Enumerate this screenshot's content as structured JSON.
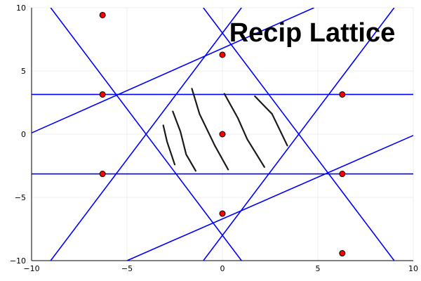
{
  "chart_data": {
    "type": "scatter",
    "title": "Recip Lattice",
    "xlabel": "",
    "ylabel": "",
    "xlim": [
      -10,
      10
    ],
    "ylim": [
      -10,
      10
    ],
    "x_ticks": [
      -10,
      -5,
      0,
      5,
      10
    ],
    "y_ticks": [
      -10,
      -5,
      0,
      5,
      10
    ],
    "x_tick_labels": [
      "−10",
      "−5",
      "0",
      "5",
      "10"
    ],
    "y_tick_labels": [
      "−10",
      "−5",
      "0",
      "5",
      "10"
    ],
    "grid": true,
    "legend": "none",
    "points": [
      {
        "x": 0,
        "y": 0
      },
      {
        "x": 0,
        "y": 6.28
      },
      {
        "x": 0,
        "y": -6.28
      },
      {
        "x": 6.28,
        "y": 3.14
      },
      {
        "x": 6.28,
        "y": -3.14
      },
      {
        "x": -6.28,
        "y": 3.14
      },
      {
        "x": -6.28,
        "y": -3.14
      },
      {
        "x": 6.28,
        "y": -9.42
      },
      {
        "x": -6.28,
        "y": 9.42
      }
    ],
    "lines": [
      {
        "x": [
          -10,
          10
        ],
        "y": [
          3.14,
          3.14
        ]
      },
      {
        "x": [
          -10,
          10
        ],
        "y": [
          -3.14,
          -3.14
        ]
      },
      {
        "x": [
          -10,
          4.8
        ],
        "y": [
          0.1,
          10
        ]
      },
      {
        "x": [
          -5,
          10
        ],
        "y": [
          -10,
          -0.1
        ]
      },
      {
        "x": [
          -9,
          1.0
        ],
        "y": [
          10,
          -10
        ]
      },
      {
        "x": [
          -1.0,
          9.0
        ],
        "y": [
          10,
          -10
        ]
      },
      {
        "x": [
          -9.0,
          1.0
        ],
        "y": [
          -10,
          10
        ]
      },
      {
        "x": [
          -1.0,
          9.0
        ],
        "y": [
          -10,
          10
        ]
      }
    ],
    "strokes": [
      [
        [
          -3.1,
          0.7
        ],
        [
          -2.9,
          -0.6
        ],
        [
          -2.5,
          -2.4
        ]
      ],
      [
        [
          -2.6,
          1.8
        ],
        [
          -2.2,
          0.2
        ],
        [
          -1.9,
          -1.6
        ],
        [
          -1.4,
          -2.9
        ]
      ],
      [
        [
          -1.6,
          3.6
        ],
        [
          -1.2,
          1.6
        ],
        [
          -0.4,
          -0.9
        ],
        [
          0.3,
          -2.8
        ]
      ],
      [
        [
          0.1,
          3.2
        ],
        [
          0.8,
          1.3
        ],
        [
          1.3,
          -0.4
        ],
        [
          2.2,
          -2.6
        ]
      ],
      [
        [
          1.7,
          3.0
        ],
        [
          2.6,
          1.6
        ],
        [
          3.4,
          -0.9
        ]
      ]
    ],
    "colors": {
      "lines": "#0000ff",
      "points_fill": "#ff0000",
      "points_stroke": "#000000",
      "strokes": "#1a1a1a",
      "grid": "#ececec",
      "axis": "#000000"
    }
  }
}
